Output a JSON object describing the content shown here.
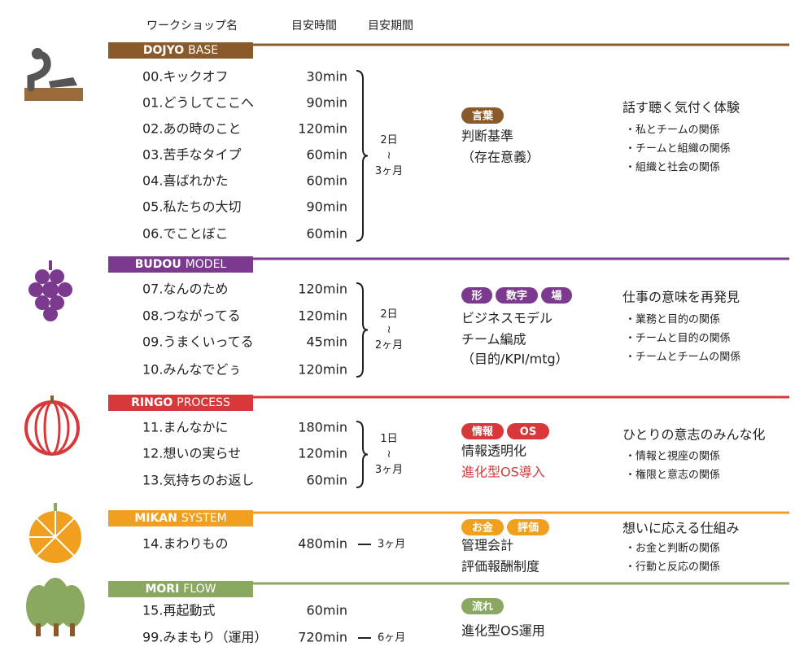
{
  "header": {
    "columns": [
      "ワークショップ名",
      "目安時間",
      "目安期間"
    ]
  },
  "sections": [
    {
      "name": "DOJYO",
      "subname": "BASE",
      "color": "#8b5a2b",
      "workshops": [
        {
          "name": "00.キックオフ",
          "time": "30min"
        },
        {
          "name": "01.どうしてここへ",
          "time": "90min"
        },
        {
          "name": "02.あの時のこと",
          "time": "120min"
        },
        {
          "name": "03.苦手なタイプ",
          "time": "60min"
        },
        {
          "name": "04.喜ばれかた",
          "time": "60min"
        },
        {
          "name": "05.私たちの大切",
          "time": "90min"
        },
        {
          "name": "06.でことぼこ",
          "time": "60min"
        }
      ],
      "period": [
        "2日",
        "≀",
        "3ヶ月"
      ],
      "tags": [
        "言葉"
      ],
      "items": [
        {
          "text": "判断基準"
        },
        {
          "text": "（存在意義）"
        }
      ],
      "theme": "話す聴く気付く体験",
      "points": [
        "・私とチームの関係",
        "・チームと組織の関係",
        "・組織と社会の関係"
      ]
    },
    {
      "name": "BUDOU",
      "subname": "MODEL",
      "color": "#7b3a8e",
      "workshops": [
        {
          "name": "07.なんのため",
          "time": "120min"
        },
        {
          "name": "08.つながってる",
          "time": "120min"
        },
        {
          "name": "09.うまくいってる",
          "time": "45min"
        },
        {
          "name": "10.みんなでどぅ",
          "time": "120min"
        }
      ],
      "period": [
        "2日",
        "≀",
        "2ヶ月"
      ],
      "tags": [
        "形",
        "数字",
        "場"
      ],
      "items": [
        {
          "text": "ビジネスモデル"
        },
        {
          "text": "チーム編成"
        },
        {
          "text": "（目的/KPI/mtg）"
        }
      ],
      "theme": "仕事の意味を再発見",
      "points": [
        "・業務と目的の関係",
        "・チームと目的の関係",
        "・チームとチームの関係"
      ]
    },
    {
      "name": "RINGO",
      "subname": "PROCESS",
      "color": "#d9383a",
      "workshops": [
        {
          "name": "11.まんなかに",
          "time": "180min"
        },
        {
          "name": "12.想いの実らせ",
          "time": "120min"
        },
        {
          "name": "13.気持ちのお返し",
          "time": "60min"
        }
      ],
      "period": [
        "1日",
        "≀",
        "3ヶ月"
      ],
      "tags": [
        "情報",
        "OS"
      ],
      "items": [
        {
          "text": "情報透明化"
        },
        {
          "text": "進化型OS導入",
          "color": "#d9383a"
        }
      ],
      "theme": "ひとりの意志のみんな化",
      "points": [
        "・情報と視座の関係",
        "・権限と意志の関係"
      ]
    },
    {
      "name": "MIKAN",
      "subname": "SYSTEM",
      "color": "#f0a01e",
      "workshops": [
        {
          "name": "14.まわりもの",
          "time": "480min"
        }
      ],
      "period": [
        "3ヶ月"
      ],
      "tags": [
        "お金",
        "評価"
      ],
      "items": [
        {
          "text": "管理会計"
        },
        {
          "text": "評価報酬制度"
        }
      ],
      "theme": "想いに応える仕組み",
      "points": [
        "・お金と判断の関係",
        "・行動と反応の関係"
      ]
    },
    {
      "name": "MORI",
      "subname": "FLOW",
      "color": "#8aa860",
      "workshops": [
        {
          "name": "15.再起動式",
          "time": "60min"
        },
        {
          "name": "99.みまもり（運用）",
          "time": "720min"
        }
      ],
      "period": [
        "6ヶ月"
      ],
      "tags": [
        "流れ"
      ],
      "items": [
        {
          "text": "進化型OS運用"
        }
      ]
    }
  ]
}
